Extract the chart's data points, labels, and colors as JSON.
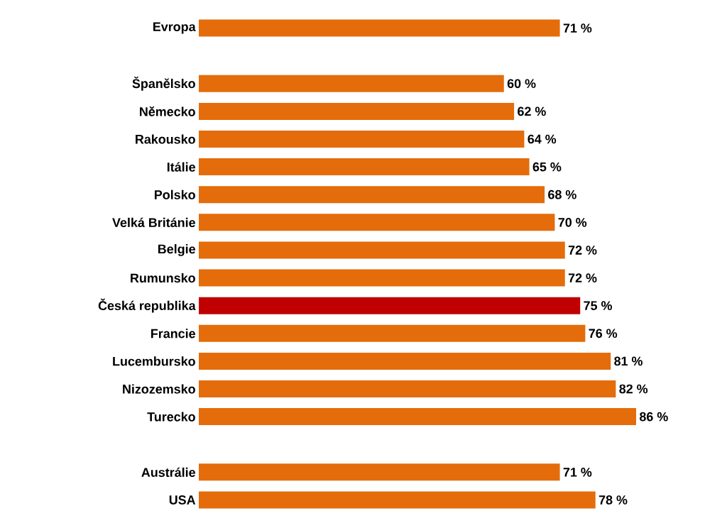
{
  "chart_data": {
    "type": "bar",
    "orientation": "horizontal",
    "categories": [
      "Evropa",
      null,
      "Španělsko",
      "Německo",
      "Rakousko",
      "Itálie",
      "Polsko",
      "Velká Británie",
      "Belgie",
      "Rumunsko",
      "Česká republika",
      "Francie",
      "Lucembursko",
      "Nizozemsko",
      "Turecko",
      null,
      "Austrálie",
      "USA"
    ],
    "values": [
      71,
      null,
      60,
      62,
      64,
      65,
      68,
      70,
      72,
      72,
      75,
      76,
      81,
      82,
      86,
      null,
      71,
      78
    ],
    "value_labels": [
      "71 %",
      null,
      "60 %",
      "62 %",
      "64 %",
      "65 %",
      "68 %",
      "70 %",
      "72 %",
      "72 %",
      "75 %",
      "76 %",
      "81 %",
      "82 %",
      "86 %",
      null,
      "71 %",
      "78 %"
    ],
    "colors": [
      "#e46c0a",
      null,
      "#e46c0a",
      "#e46c0a",
      "#e46c0a",
      "#e46c0a",
      "#e46c0a",
      "#e46c0a",
      "#e46c0a",
      "#e46c0a",
      "#c00000",
      "#e46c0a",
      "#e46c0a",
      "#e46c0a",
      "#e46c0a",
      null,
      "#e46c0a",
      "#e46c0a"
    ]
  }
}
